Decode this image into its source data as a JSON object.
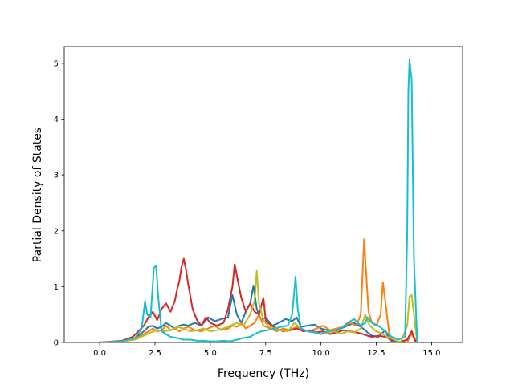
{
  "chart_data": {
    "type": "line",
    "xlabel": "Frequency (THz)",
    "ylabel": "Partial Density of States",
    "xlim": [
      -1.6,
      16.4
    ],
    "ylim": [
      0,
      5.3
    ],
    "xticks": [
      0.0,
      2.5,
      5.0,
      7.5,
      10.0,
      12.5,
      15.0
    ],
    "xtick_labels": [
      "0.0",
      "2.5",
      "5.0",
      "7.5",
      "10.0",
      "12.5",
      "15.0"
    ],
    "yticks": [
      0,
      1,
      2,
      3,
      4,
      5
    ],
    "ytick_labels": [
      "0",
      "1",
      "2",
      "3",
      "4",
      "5"
    ],
    "grid": false,
    "series": [
      {
        "color": "#1f77b4",
        "x": [
          -1.4,
          0.0,
          1.0,
          1.6,
          2.0,
          2.2,
          2.4,
          2.6,
          2.8,
          3.0,
          3.2,
          3.4,
          3.6,
          3.8,
          4.0,
          4.3,
          4.6,
          4.9,
          5.2,
          5.5,
          5.8,
          6.0,
          6.2,
          6.4,
          6.6,
          6.8,
          6.95,
          7.1,
          7.3,
          7.5,
          7.8,
          8.1,
          8.4,
          8.7,
          8.9,
          9.1,
          9.4,
          9.7,
          10.0,
          10.3,
          10.6,
          10.9,
          11.2,
          11.5,
          11.8,
          12.0,
          12.1,
          12.3,
          12.6,
          12.9,
          13.1,
          13.3,
          13.6,
          13.9,
          14.1,
          14.3,
          15.6
        ],
        "values": [
          0,
          0,
          0.02,
          0.08,
          0.2,
          0.28,
          0.3,
          0.25,
          0.28,
          0.35,
          0.3,
          0.25,
          0.3,
          0.32,
          0.3,
          0.35,
          0.3,
          0.45,
          0.38,
          0.42,
          0.45,
          0.85,
          0.5,
          0.35,
          0.55,
          0.7,
          1.02,
          0.6,
          0.4,
          0.45,
          0.3,
          0.35,
          0.42,
          0.38,
          0.45,
          0.28,
          0.3,
          0.32,
          0.25,
          0.22,
          0.2,
          0.25,
          0.3,
          0.35,
          0.28,
          0.22,
          0.18,
          0.12,
          0.1,
          0.22,
          0.05,
          0,
          0,
          0.05,
          0.2,
          0,
          0
        ]
      },
      {
        "color": "#ff7f0e",
        "x": [
          -1.4,
          0.0,
          1.0,
          1.6,
          2.0,
          2.2,
          2.4,
          2.6,
          2.8,
          3.0,
          3.2,
          3.4,
          3.6,
          3.8,
          4.0,
          4.3,
          4.6,
          4.9,
          5.2,
          5.5,
          5.8,
          6.0,
          6.2,
          6.4,
          6.6,
          6.8,
          7.0,
          7.2,
          7.4,
          7.7,
          8.0,
          8.3,
          8.6,
          8.9,
          9.2,
          9.5,
          9.8,
          10.1,
          10.4,
          10.7,
          11.0,
          11.3,
          11.6,
          11.8,
          11.95,
          12.05,
          12.15,
          12.3,
          12.5,
          12.7,
          12.8,
          12.95,
          13.1,
          13.5,
          13.9,
          14.0,
          14.1,
          14.3,
          15.6
        ],
        "values": [
          0,
          0,
          0.02,
          0.06,
          0.15,
          0.2,
          0.25,
          0.2,
          0.22,
          0.3,
          0.22,
          0.25,
          0.2,
          0.25,
          0.28,
          0.22,
          0.2,
          0.25,
          0.3,
          0.22,
          0.25,
          0.3,
          0.28,
          0.35,
          0.25,
          0.3,
          0.35,
          0.5,
          0.3,
          0.25,
          0.2,
          0.25,
          0.22,
          0.28,
          0.22,
          0.2,
          0.25,
          0.3,
          0.22,
          0.25,
          0.28,
          0.35,
          0.3,
          0.5,
          1.85,
          1.2,
          0.55,
          0.35,
          0.3,
          0.5,
          1.08,
          0.6,
          0.1,
          0,
          0,
          0.1,
          0.15,
          0,
          0
        ]
      },
      {
        "color": "#d62728",
        "x": [
          -1.4,
          0.0,
          1.0,
          1.5,
          2.0,
          2.2,
          2.4,
          2.6,
          2.8,
          3.0,
          3.2,
          3.4,
          3.5,
          3.6,
          3.7,
          3.8,
          3.9,
          4.0,
          4.2,
          4.4,
          4.6,
          4.8,
          5.0,
          5.3,
          5.6,
          5.8,
          6.0,
          6.1,
          6.2,
          6.4,
          6.6,
          6.8,
          7.0,
          7.2,
          7.4,
          7.5,
          7.6,
          7.8,
          8.0,
          8.3,
          8.6,
          8.9,
          9.2,
          9.5,
          9.8,
          10.1,
          10.4,
          10.7,
          11.0,
          11.3,
          11.6,
          11.9,
          12.1,
          12.3,
          12.6,
          12.9,
          13.2,
          13.5,
          13.9,
          14.1,
          14.3,
          15.6
        ],
        "values": [
          0,
          0,
          0.03,
          0.1,
          0.3,
          0.45,
          0.55,
          0.4,
          0.6,
          0.7,
          0.55,
          0.75,
          0.95,
          1.1,
          1.35,
          1.5,
          1.3,
          1.05,
          0.6,
          0.4,
          0.3,
          0.45,
          0.35,
          0.3,
          0.35,
          0.6,
          1.0,
          1.4,
          1.2,
          0.8,
          0.55,
          0.7,
          0.55,
          0.5,
          0.8,
          0.4,
          0.35,
          0.3,
          0.25,
          0.2,
          0.22,
          0.25,
          0.2,
          0.22,
          0.18,
          0.2,
          0.15,
          0.18,
          0.22,
          0.2,
          0.18,
          0.15,
          0.12,
          0.1,
          0.12,
          0.1,
          0.05,
          0,
          0.05,
          0.2,
          0,
          0
        ]
      },
      {
        "color": "#bcbd22",
        "x": [
          -1.4,
          0.0,
          1.0,
          1.6,
          2.0,
          2.3,
          2.6,
          2.9,
          3.2,
          3.5,
          3.8,
          4.1,
          4.4,
          4.7,
          5.0,
          5.3,
          5.6,
          5.9,
          6.2,
          6.5,
          6.8,
          7.0,
          7.1,
          7.2,
          7.4,
          7.6,
          7.9,
          8.2,
          8.5,
          8.8,
          9.1,
          9.4,
          9.7,
          10.0,
          10.3,
          10.6,
          10.9,
          11.2,
          11.5,
          11.8,
          12.0,
          12.2,
          12.5,
          12.8,
          13.0,
          13.3,
          13.6,
          13.9,
          14.0,
          14.1,
          14.2,
          14.35,
          15.6
        ],
        "values": [
          0,
          0,
          0.02,
          0.05,
          0.12,
          0.18,
          0.22,
          0.2,
          0.22,
          0.28,
          0.25,
          0.2,
          0.22,
          0.25,
          0.2,
          0.22,
          0.25,
          0.3,
          0.35,
          0.3,
          0.5,
          0.75,
          1.28,
          0.7,
          0.4,
          0.3,
          0.25,
          0.22,
          0.2,
          0.35,
          0.25,
          0.2,
          0.18,
          0.15,
          0.18,
          0.2,
          0.15,
          0.2,
          0.18,
          0.25,
          0.5,
          0.3,
          0.2,
          0.15,
          0.1,
          0.05,
          0,
          0.3,
          0.82,
          0.85,
          0.5,
          0,
          0
        ]
      },
      {
        "color": "#17becf",
        "x": [
          -1.4,
          0.0,
          1.0,
          1.6,
          1.9,
          2.05,
          2.15,
          2.3,
          2.45,
          2.55,
          2.65,
          2.8,
          3.0,
          3.2,
          3.5,
          3.8,
          4.1,
          4.4,
          4.7,
          5.0,
          5.3,
          5.6,
          5.9,
          6.2,
          6.5,
          6.8,
          7.0,
          7.3,
          7.6,
          7.9,
          8.2,
          8.5,
          8.7,
          8.85,
          8.95,
          9.1,
          9.4,
          9.7,
          10.0,
          10.3,
          10.6,
          10.9,
          11.2,
          11.5,
          11.8,
          12.0,
          12.1,
          12.3,
          12.6,
          12.9,
          13.2,
          13.5,
          13.8,
          13.9,
          13.95,
          14.0,
          14.1,
          14.2,
          14.35,
          15.6
        ],
        "values": [
          0,
          0,
          0.02,
          0.08,
          0.25,
          0.74,
          0.5,
          0.45,
          1.34,
          1.37,
          0.8,
          0.2,
          0.15,
          0.1,
          0.08,
          0.05,
          0.05,
          0.03,
          0.03,
          0.02,
          0.02,
          0.03,
          0.02,
          0.05,
          0.08,
          0.1,
          0.15,
          0.2,
          0.22,
          0.25,
          0.28,
          0.3,
          0.5,
          1.18,
          0.6,
          0.25,
          0.2,
          0.18,
          0.15,
          0.2,
          0.22,
          0.25,
          0.35,
          0.42,
          0.3,
          0.35,
          0.45,
          0.35,
          0.3,
          0.2,
          0.1,
          0.05,
          0.1,
          2.0,
          4.5,
          5.06,
          4.7,
          1.5,
          0,
          0
        ]
      }
    ]
  }
}
